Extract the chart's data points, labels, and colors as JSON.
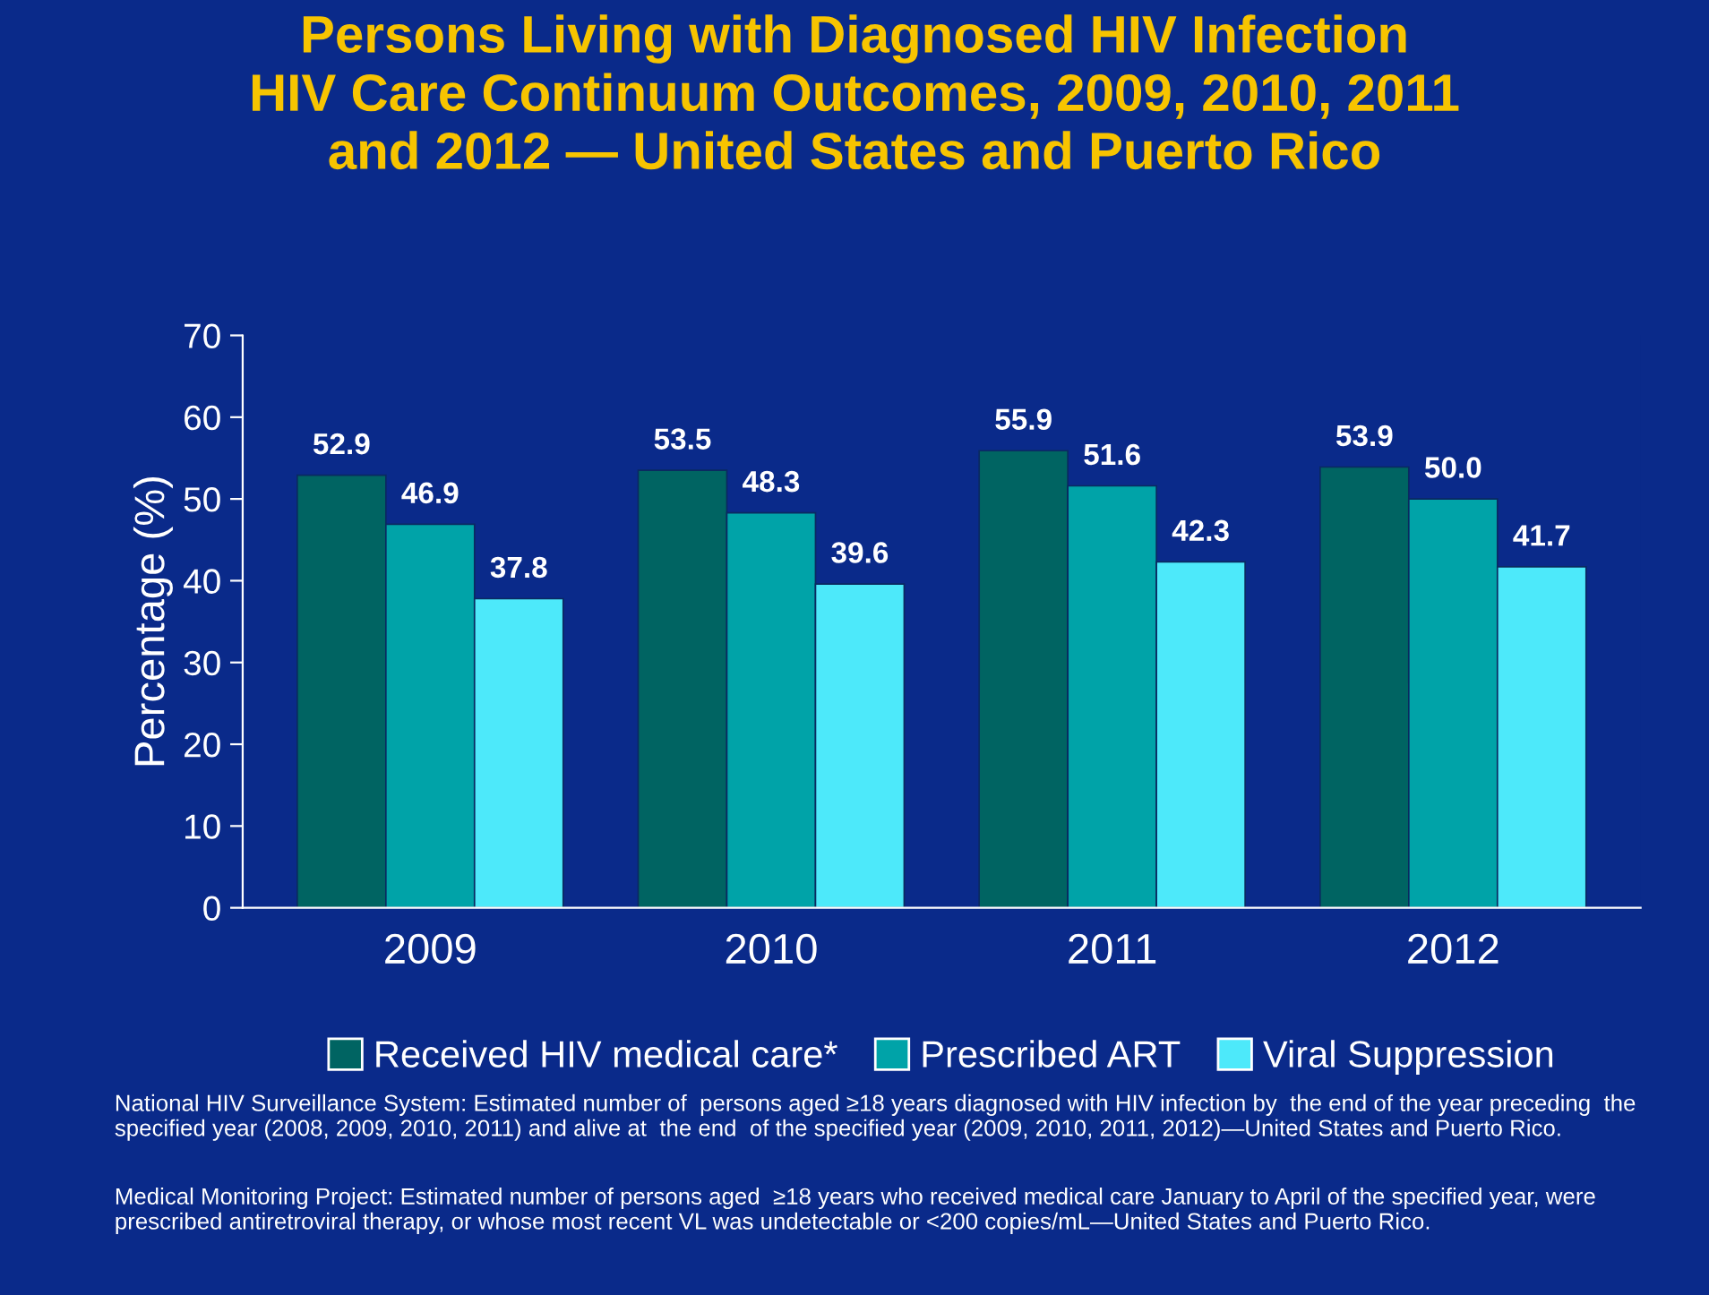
{
  "chart_data": {
    "type": "bar",
    "title": "Persons Living with Diagnosed HIV Infection\nHIV Care Continuum Outcomes, 2009, 2010, 2011\nand 2012 — United States and Puerto Rico",
    "ylabel": "Percentage (%)",
    "categories": [
      "2009",
      "2010",
      "2011",
      "2012"
    ],
    "series": [
      {
        "name": "Received HIV medical care*",
        "color": "#006462",
        "values": [
          52.9,
          53.5,
          55.9,
          53.9
        ]
      },
      {
        "name": "Prescribed ART",
        "color": "#00a3a8",
        "values": [
          46.9,
          48.3,
          51.6,
          50.0
        ]
      },
      {
        "name": "Viral Suppression",
        "color": "#4de9fa",
        "values": [
          37.8,
          39.6,
          42.3,
          41.7
        ]
      }
    ],
    "value_labels": [
      [
        "52.9",
        "53.5",
        "55.9",
        "53.9"
      ],
      [
        "46.9",
        "48.3",
        "51.6",
        "50.0"
      ],
      [
        "37.8",
        "39.6",
        "42.3",
        "41.7"
      ]
    ],
    "ylim": [
      0,
      70
    ],
    "yticks": [
      0,
      10,
      20,
      30,
      40,
      50,
      60,
      70
    ],
    "grid": false,
    "legend": "bottom",
    "annotations": [
      "National HIV Surveillance System: Estimated number of  persons aged ≥18 years diagnosed with HIV infection by  the end of the year preceding  the specified year (2008, 2009, 2010, 2011) and alive at  the end  of the specified year (2009, 2010, 2011, 2012)—United States and Puerto Rico.",
      "Medical Monitoring Project: Estimated number of persons aged  ≥18 years who received medical care January to April of the specified year, were prescribed antiretroviral therapy, or whose most recent VL was undetectable or <200 copies/mL—United States and Puerto Rico."
    ]
  }
}
